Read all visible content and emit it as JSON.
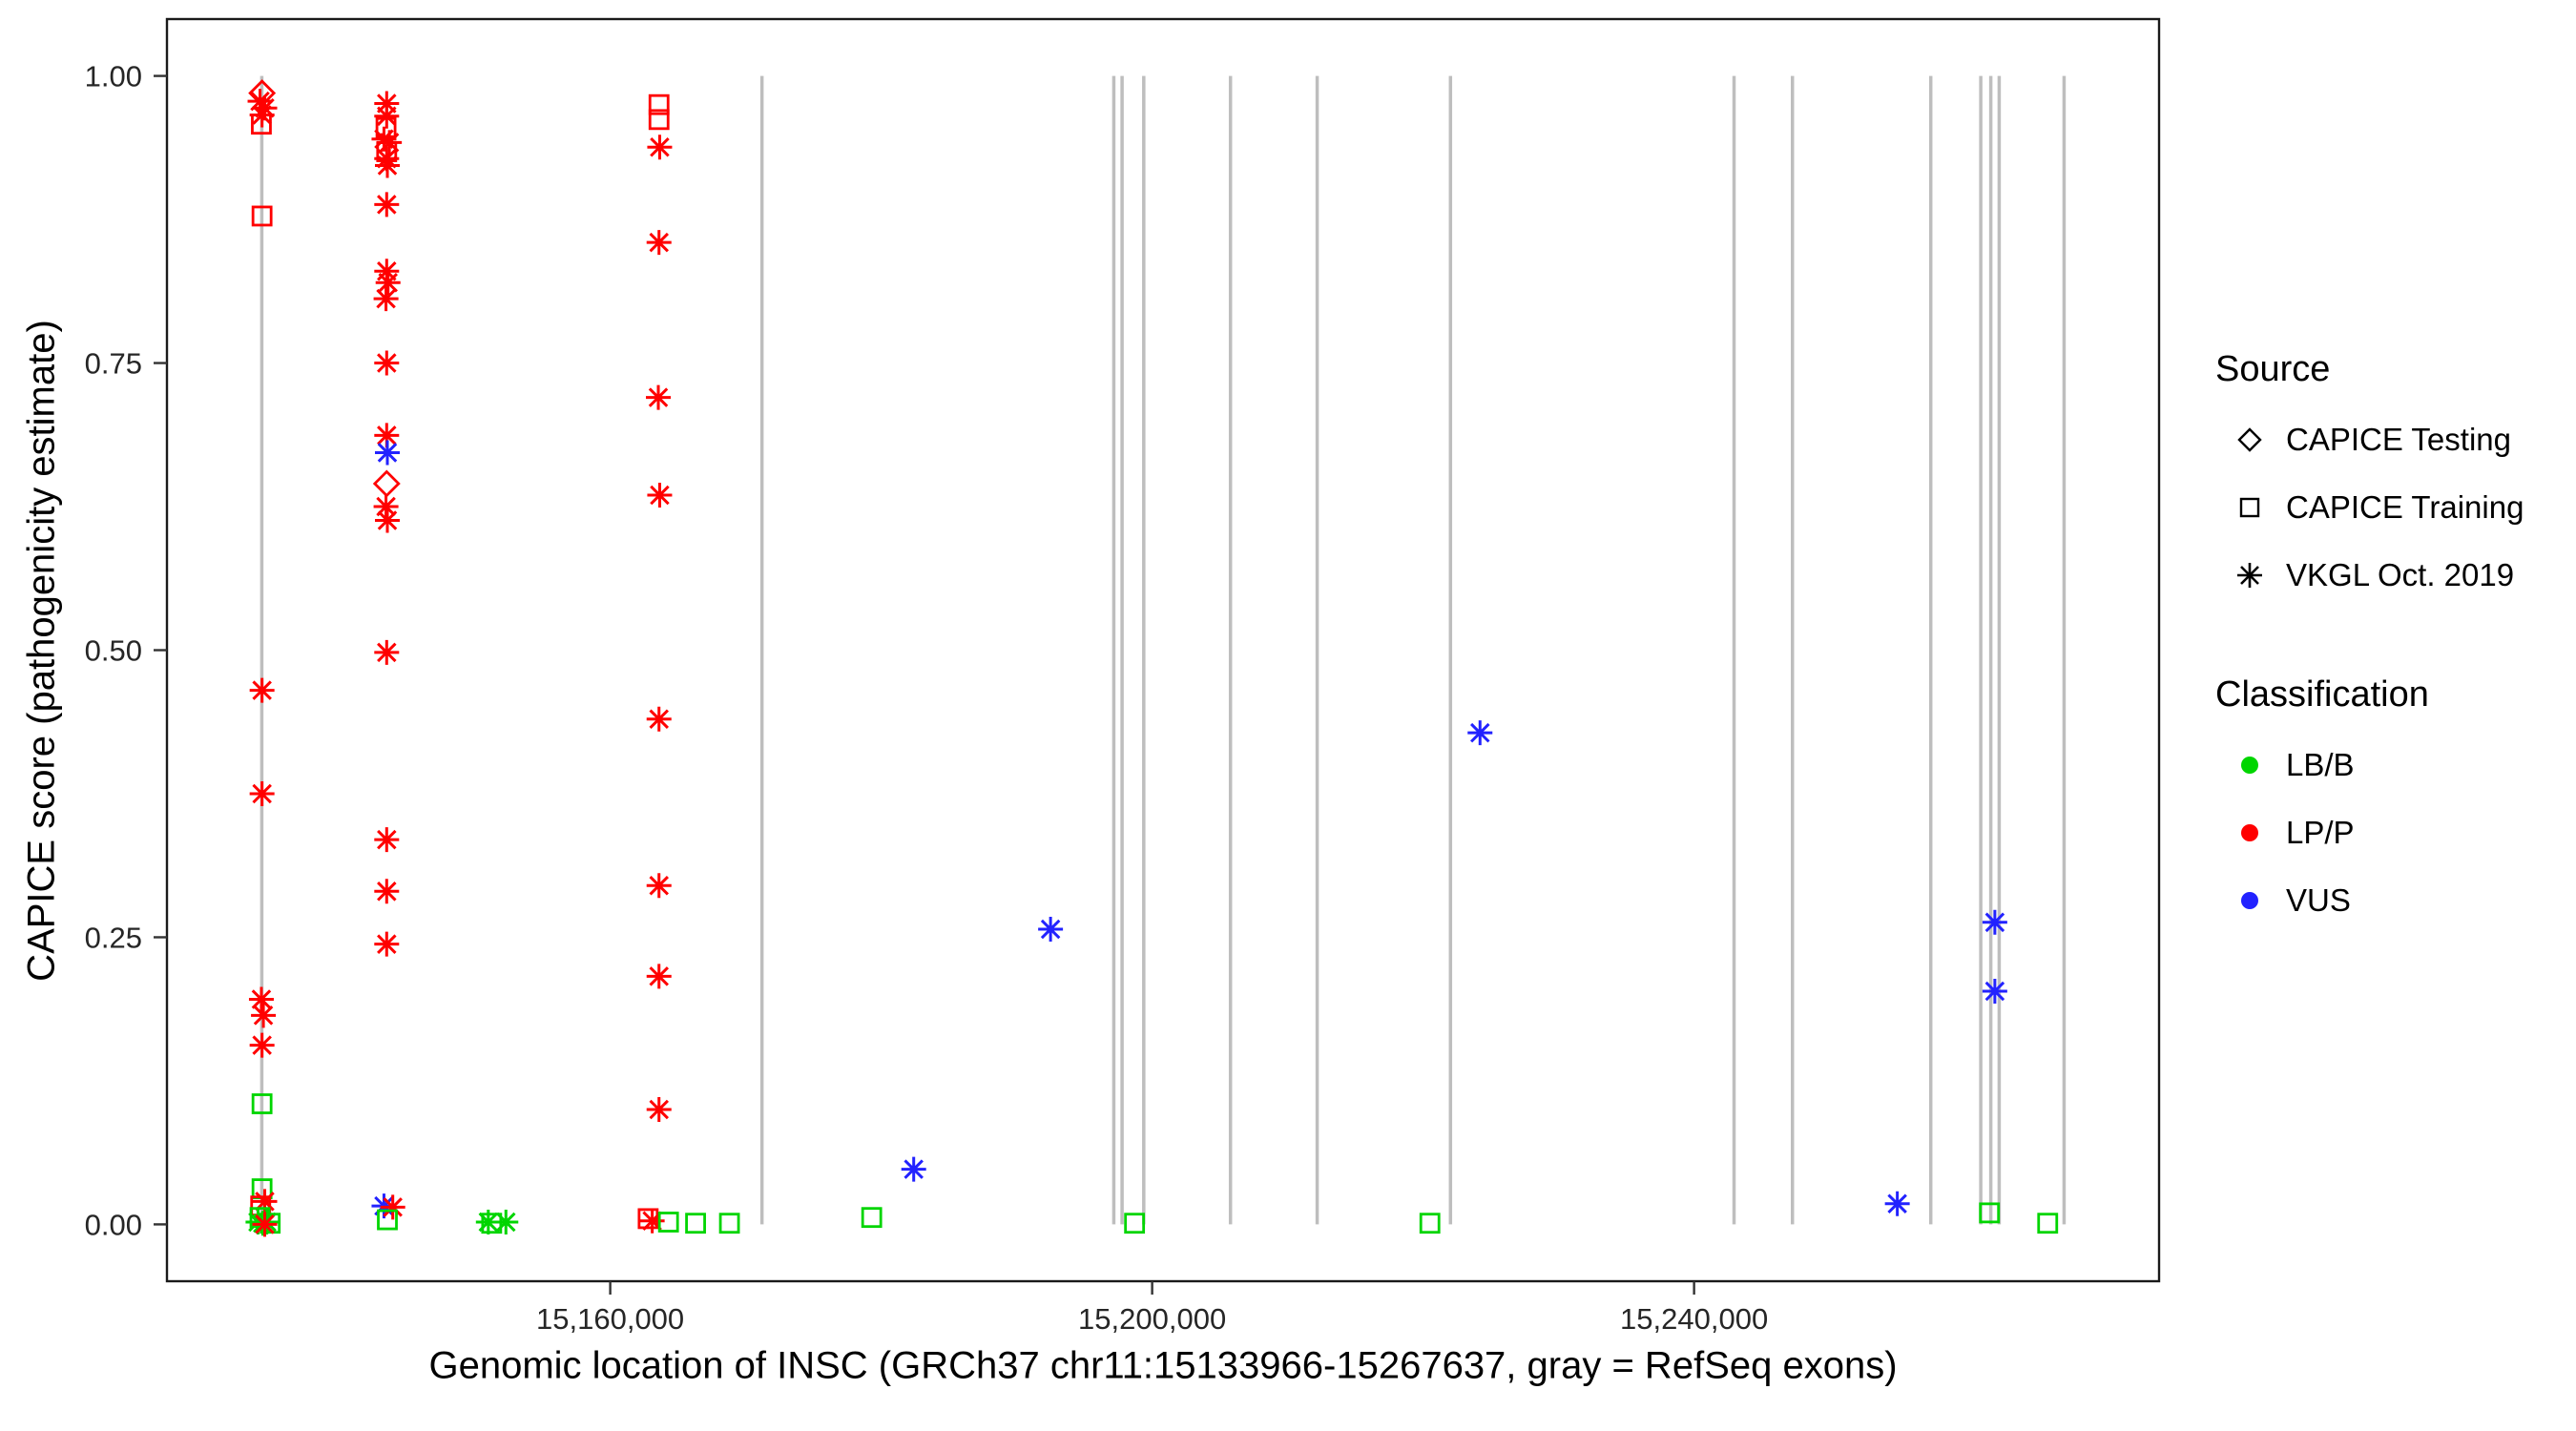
{
  "chart_data": {
    "type": "scatter",
    "title": "",
    "xlabel": "Genomic location of INSC (GRCh37 chr11:15133966-15267637, gray = RefSeq exons)",
    "ylabel": "CAPICE score (pathogenicity estimate)",
    "x_domain": [
      15127282,
      15274321
    ],
    "y_domain": [
      -0.0495,
      1.0495
    ],
    "grid": "off",
    "legend_position": "right",
    "x_ticks": [
      {
        "value": 15160000,
        "label": "15,160,000"
      },
      {
        "value": 15200000,
        "label": "15,200,000"
      },
      {
        "value": 15240000,
        "label": "15,240,000"
      }
    ],
    "y_ticks": [
      {
        "value": 0.0,
        "label": "0.00"
      },
      {
        "value": 0.25,
        "label": "0.25"
      },
      {
        "value": 0.5,
        "label": "0.50"
      },
      {
        "value": 0.75,
        "label": "0.75"
      },
      {
        "value": 1.0,
        "label": "1.00"
      }
    ],
    "exon_color": "#BEBEBE",
    "exon_lines": [
      15134282,
      15171200,
      15197170,
      15197780,
      15199380,
      15205780,
      15212180,
      15222020,
      15242950,
      15247260,
      15257470,
      15261160,
      15261900,
      15262520,
      15267310
    ],
    "classification_colors": {
      "LB/B": "#00D500",
      "LP/P": "#FF0000",
      "VUS": "#2222FF"
    },
    "shape_meaning": {
      "diamond": "CAPICE Testing",
      "square": "CAPICE Training",
      "asterisk": "VKGL Oct. 2019"
    },
    "points": [
      {
        "x": 15134300,
        "y": 0.985,
        "shape": "diamond",
        "class": "LP/P"
      },
      {
        "x": 15134150,
        "y": 0.978,
        "shape": "asterisk",
        "class": "LP/P"
      },
      {
        "x": 15134500,
        "y": 0.972,
        "shape": "asterisk",
        "class": "LP/P"
      },
      {
        "x": 15134300,
        "y": 0.966,
        "shape": "asterisk",
        "class": "LP/P"
      },
      {
        "x": 15134250,
        "y": 0.958,
        "shape": "square",
        "class": "LP/P"
      },
      {
        "x": 15134300,
        "y": 0.878,
        "shape": "square",
        "class": "LP/P"
      },
      {
        "x": 15134300,
        "y": 0.465,
        "shape": "asterisk",
        "class": "LP/P"
      },
      {
        "x": 15134300,
        "y": 0.375,
        "shape": "asterisk",
        "class": "LP/P"
      },
      {
        "x": 15134250,
        "y": 0.196,
        "shape": "asterisk",
        "class": "LP/P"
      },
      {
        "x": 15134400,
        "y": 0.182,
        "shape": "asterisk",
        "class": "LP/P"
      },
      {
        "x": 15134300,
        "y": 0.156,
        "shape": "asterisk",
        "class": "LP/P"
      },
      {
        "x": 15134300,
        "y": 0.105,
        "shape": "square",
        "class": "LB/B"
      },
      {
        "x": 15134300,
        "y": 0.031,
        "shape": "square",
        "class": "LB/B"
      },
      {
        "x": 15134500,
        "y": 0.02,
        "shape": "asterisk",
        "class": "LP/P"
      },
      {
        "x": 15134200,
        "y": 0.016,
        "shape": "square",
        "class": "LP/P"
      },
      {
        "x": 15134150,
        "y": 0.006,
        "shape": "square",
        "class": "LB/B"
      },
      {
        "x": 15134000,
        "y": 0.002,
        "shape": "asterisk",
        "class": "LB/B"
      },
      {
        "x": 15134350,
        "y": 0.001,
        "shape": "asterisk",
        "class": "LB/B"
      },
      {
        "x": 15134650,
        "y": 0.002,
        "shape": "asterisk",
        "class": "LB/B"
      },
      {
        "x": 15134900,
        "y": 0.001,
        "shape": "square",
        "class": "LB/B"
      },
      {
        "x": 15134500,
        "y": 0.0,
        "shape": "asterisk",
        "class": "LP/P"
      },
      {
        "x": 15143500,
        "y": 0.976,
        "shape": "asterisk",
        "class": "LP/P"
      },
      {
        "x": 15143500,
        "y": 0.965,
        "shape": "asterisk",
        "class": "LP/P"
      },
      {
        "x": 15143450,
        "y": 0.955,
        "shape": "square",
        "class": "LP/P"
      },
      {
        "x": 15143300,
        "y": 0.945,
        "shape": "asterisk",
        "class": "LP/P"
      },
      {
        "x": 15143700,
        "y": 0.942,
        "shape": "asterisk",
        "class": "LP/P"
      },
      {
        "x": 15143500,
        "y": 0.934,
        "shape": "square",
        "class": "LP/P"
      },
      {
        "x": 15143500,
        "y": 0.928,
        "shape": "asterisk",
        "class": "LP/P"
      },
      {
        "x": 15143550,
        "y": 0.922,
        "shape": "asterisk",
        "class": "LP/P"
      },
      {
        "x": 15143500,
        "y": 0.888,
        "shape": "asterisk",
        "class": "LP/P"
      },
      {
        "x": 15143500,
        "y": 0.83,
        "shape": "asterisk",
        "class": "LP/P"
      },
      {
        "x": 15143600,
        "y": 0.82,
        "shape": "asterisk",
        "class": "LP/P"
      },
      {
        "x": 15143450,
        "y": 0.806,
        "shape": "asterisk",
        "class": "LP/P"
      },
      {
        "x": 15143500,
        "y": 0.75,
        "shape": "asterisk",
        "class": "LP/P"
      },
      {
        "x": 15143500,
        "y": 0.687,
        "shape": "asterisk",
        "class": "LP/P"
      },
      {
        "x": 15143550,
        "y": 0.672,
        "shape": "asterisk",
        "class": "VUS"
      },
      {
        "x": 15143500,
        "y": 0.645,
        "shape": "diamond",
        "class": "LP/P"
      },
      {
        "x": 15143450,
        "y": 0.625,
        "shape": "asterisk",
        "class": "LP/P"
      },
      {
        "x": 15143550,
        "y": 0.613,
        "shape": "asterisk",
        "class": "LP/P"
      },
      {
        "x": 15143500,
        "y": 0.498,
        "shape": "asterisk",
        "class": "LP/P"
      },
      {
        "x": 15143500,
        "y": 0.335,
        "shape": "asterisk",
        "class": "LP/P"
      },
      {
        "x": 15143500,
        "y": 0.29,
        "shape": "asterisk",
        "class": "LP/P"
      },
      {
        "x": 15143500,
        "y": 0.244,
        "shape": "asterisk",
        "class": "LP/P"
      },
      {
        "x": 15143300,
        "y": 0.016,
        "shape": "asterisk",
        "class": "VUS"
      },
      {
        "x": 15143950,
        "y": 0.015,
        "shape": "asterisk",
        "class": "LP/P"
      },
      {
        "x": 15143550,
        "y": 0.004,
        "shape": "square",
        "class": "LB/B"
      },
      {
        "x": 15151000,
        "y": 0.002,
        "shape": "asterisk",
        "class": "LB/B"
      },
      {
        "x": 15151250,
        "y": 0.001,
        "shape": "square",
        "class": "LB/B"
      },
      {
        "x": 15152300,
        "y": 0.002,
        "shape": "asterisk",
        "class": "LB/B"
      },
      {
        "x": 15163600,
        "y": 0.975,
        "shape": "square",
        "class": "LP/P"
      },
      {
        "x": 15163600,
        "y": 0.962,
        "shape": "square",
        "class": "LP/P"
      },
      {
        "x": 15163650,
        "y": 0.938,
        "shape": "asterisk",
        "class": "LP/P"
      },
      {
        "x": 15163600,
        "y": 0.855,
        "shape": "asterisk",
        "class": "LP/P"
      },
      {
        "x": 15163550,
        "y": 0.72,
        "shape": "asterisk",
        "class": "LP/P"
      },
      {
        "x": 15163650,
        "y": 0.635,
        "shape": "asterisk",
        "class": "LP/P"
      },
      {
        "x": 15163600,
        "y": 0.44,
        "shape": "asterisk",
        "class": "LP/P"
      },
      {
        "x": 15163600,
        "y": 0.295,
        "shape": "asterisk",
        "class": "LP/P"
      },
      {
        "x": 15163600,
        "y": 0.216,
        "shape": "asterisk",
        "class": "LP/P"
      },
      {
        "x": 15163600,
        "y": 0.1,
        "shape": "asterisk",
        "class": "LP/P"
      },
      {
        "x": 15162800,
        "y": 0.005,
        "shape": "square",
        "class": "LP/P"
      },
      {
        "x": 15163100,
        "y": 0.003,
        "shape": "asterisk",
        "class": "LP/P"
      },
      {
        "x": 15164300,
        "y": 0.002,
        "shape": "square",
        "class": "LB/B"
      },
      {
        "x": 15166300,
        "y": 0.001,
        "shape": "square",
        "class": "LB/B"
      },
      {
        "x": 15168800,
        "y": 0.001,
        "shape": "square",
        "class": "LB/B"
      },
      {
        "x": 15179300,
        "y": 0.006,
        "shape": "square",
        "class": "LB/B"
      },
      {
        "x": 15182400,
        "y": 0.048,
        "shape": "asterisk",
        "class": "VUS"
      },
      {
        "x": 15192500,
        "y": 0.257,
        "shape": "asterisk",
        "class": "VUS"
      },
      {
        "x": 15198700,
        "y": 0.001,
        "shape": "square",
        "class": "LB/B"
      },
      {
        "x": 15220500,
        "y": 0.001,
        "shape": "square",
        "class": "LB/B"
      },
      {
        "x": 15224200,
        "y": 0.428,
        "shape": "asterisk",
        "class": "VUS"
      },
      {
        "x": 15255000,
        "y": 0.018,
        "shape": "asterisk",
        "class": "VUS"
      },
      {
        "x": 15261800,
        "y": 0.01,
        "shape": "square",
        "class": "LB/B"
      },
      {
        "x": 15262200,
        "y": 0.263,
        "shape": "asterisk",
        "class": "VUS"
      },
      {
        "x": 15262200,
        "y": 0.203,
        "shape": "asterisk",
        "class": "VUS"
      },
      {
        "x": 15266100,
        "y": 0.001,
        "shape": "square",
        "class": "LB/B"
      }
    ]
  },
  "axes": {
    "x_label": "Genomic location of INSC (GRCh37 chr11:15133966-15267637, gray = RefSeq exons)",
    "y_label": "CAPICE score (pathogenicity estimate)"
  },
  "legend": {
    "source": {
      "title": "Source",
      "items": [
        {
          "label": "CAPICE Testing",
          "shape": "diamond"
        },
        {
          "label": "CAPICE Training",
          "shape": "square"
        },
        {
          "label": "VKGL Oct. 2019",
          "shape": "asterisk"
        }
      ]
    },
    "classification": {
      "title": "Classification",
      "items": [
        {
          "label": "LB/B",
          "color": "#00D500"
        },
        {
          "label": "LP/P",
          "color": "#FF0000"
        },
        {
          "label": "VUS",
          "color": "#2222FF"
        }
      ]
    }
  }
}
